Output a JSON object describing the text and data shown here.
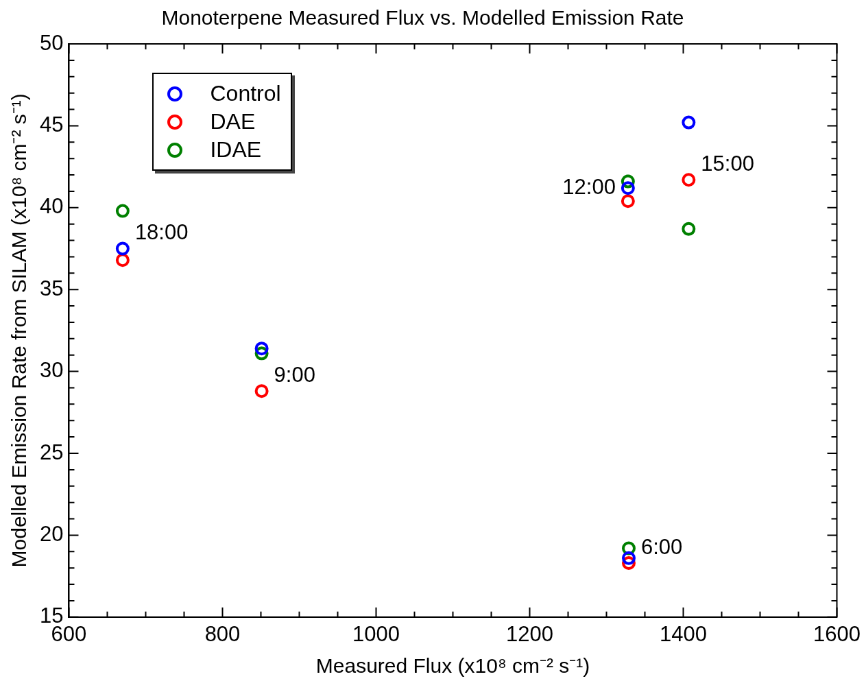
{
  "chart_data": {
    "type": "scatter",
    "title": "Monoterpene Measured Flux vs. Modelled Emission Rate",
    "xlabel": "Measured Flux (x10⁸ cm⁻² s⁻¹)",
    "ylabel": "Modelled Emission Rate from SILAM (x10⁸ cm⁻² s⁻¹)",
    "x": [
      670,
      851,
      1328,
      1407,
      1329
    ],
    "series": [
      {
        "name": "Control",
        "color": "#0000ff",
        "values": [
          37.5,
          31.4,
          41.2,
          45.2,
          18.6
        ]
      },
      {
        "name": "DAE",
        "color": "#ff0000",
        "values": [
          36.8,
          28.8,
          40.4,
          41.7,
          18.3
        ]
      },
      {
        "name": "IDAE",
        "color": "#008000",
        "values": [
          39.8,
          31.1,
          41.6,
          38.7,
          19.2
        ]
      }
    ],
    "xlim": [
      600,
      1600
    ],
    "xticks": [
      600,
      {
        "value": 650,
        "label": null
      },
      {
        "value": 700,
        "label": null
      },
      {
        "value": 750,
        "label": null
      },
      800,
      {
        "value": 850,
        "label": null
      },
      {
        "value": 900,
        "label": null
      },
      {
        "value": 950,
        "label": null
      },
      1000,
      {
        "value": 1050,
        "label": null
      },
      {
        "value": 1100,
        "label": null
      },
      {
        "value": 1150,
        "label": null
      },
      1200,
      {
        "value": 1250,
        "label": null
      },
      {
        "value": 1300,
        "label": null
      },
      {
        "value": 1350,
        "label": null
      },
      1400,
      {
        "value": 1450,
        "label": null
      },
      {
        "value": 1500,
        "label": null
      },
      {
        "value": 1550,
        "label": null
      },
      1600
    ],
    "ylim": [
      15,
      50
    ],
    "yticks": [
      15,
      {
        "value": 16,
        "label": null
      },
      {
        "value": 17,
        "label": null
      },
      {
        "value": 18,
        "label": null
      },
      {
        "value": 19,
        "label": null
      },
      20,
      {
        "value": 21,
        "label": null
      },
      {
        "value": 22,
        "label": null
      },
      {
        "value": 23,
        "label": null
      },
      {
        "value": 24,
        "label": null
      },
      25,
      {
        "value": 26,
        "label": null
      },
      {
        "value": 27,
        "label": null
      },
      {
        "value": 28,
        "label": null
      },
      {
        "value": 29,
        "label": null
      },
      30,
      {
        "value": 31,
        "label": null
      },
      {
        "value": 32,
        "label": null
      },
      {
        "value": 33,
        "label": null
      },
      {
        "value": 34,
        "label": null
      },
      35,
      {
        "value": 36,
        "label": null
      },
      {
        "value": 37,
        "label": null
      },
      {
        "value": 38,
        "label": null
      },
      {
        "value": 39,
        "label": null
      },
      40,
      {
        "value": 41,
        "label": null
      },
      {
        "value": 42,
        "label": null
      },
      {
        "value": 43,
        "label": null
      },
      {
        "value": 44,
        "label": null
      },
      45,
      {
        "value": 46,
        "label": null
      },
      {
        "value": 47,
        "label": null
      },
      {
        "value": 48,
        "label": null
      },
      {
        "value": 49,
        "label": null
      },
      50
    ],
    "annotations": [
      {
        "text": "18:00",
        "x": 670,
        "y": 37.5
      },
      {
        "text": "9:00",
        "x": 851,
        "y": 28.8
      },
      {
        "text": "12:00",
        "x": 1328,
        "y": 41.2
      },
      {
        "text": "15:00",
        "x": 1407,
        "y": 41.7
      },
      {
        "text": "6:00",
        "x": 1329,
        "y": 18.3
      }
    ],
    "grid": false,
    "legend": "top left",
    "marker": "circle"
  }
}
